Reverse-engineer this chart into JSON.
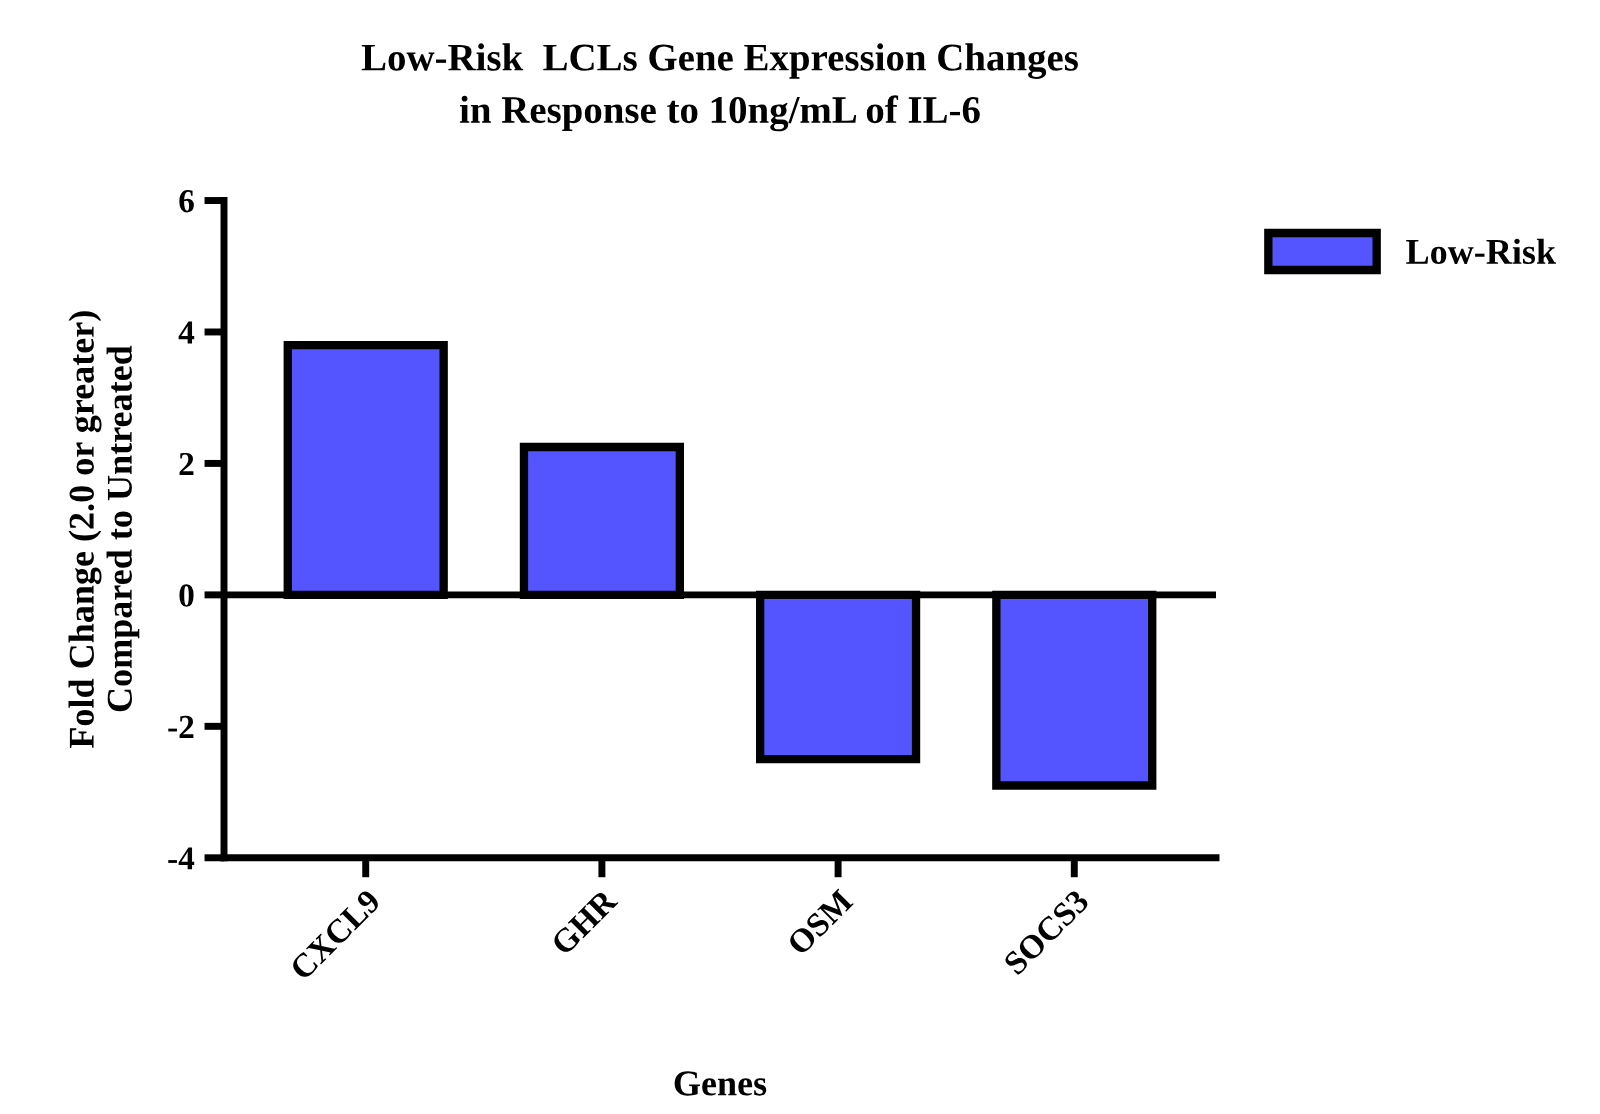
{
  "chart_data": {
    "type": "bar",
    "title": "Low-Risk  LCLs Gene Expression Changes\nin Response to 10ng/mL of IL-6",
    "xlabel": "Genes",
    "ylabel": "Fold Change (2.0 or greater)\nCompared to Untreated",
    "categories": [
      "CXCL9",
      "GHR",
      "OSM",
      "SOCS3"
    ],
    "series": [
      {
        "name": "Low-Risk",
        "color": "#5555ff",
        "values": [
          3.8,
          2.25,
          -2.5,
          -2.9
        ]
      }
    ],
    "ylim": [
      -4,
      6
    ],
    "yticks": [
      -4,
      -2,
      0,
      2,
      4,
      6
    ],
    "ref_lines": [
      {
        "axis": "y",
        "value": 0,
        "color": "#000000"
      }
    ],
    "grid": false,
    "legend": "top right"
  }
}
